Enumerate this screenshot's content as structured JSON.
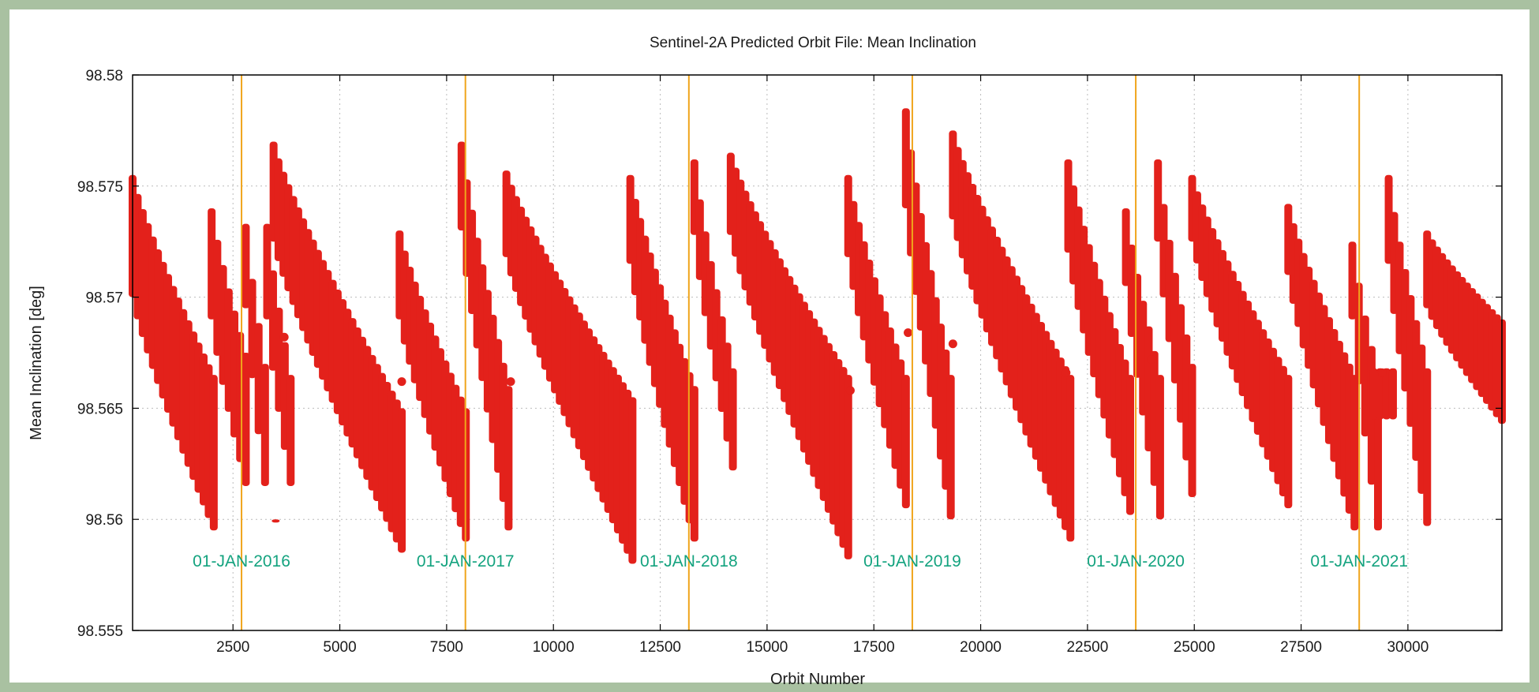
{
  "frame_color": "#a9c1a1",
  "chart_data": {
    "type": "scatter",
    "title": "Sentinel-2A Predicted Orbit File: Mean Inclination",
    "xlabel": "Orbit Number",
    "ylabel": "Mean Inclination [deg]",
    "xlim": [
      150,
      32200
    ],
    "ylim": [
      98.555,
      98.58
    ],
    "x_ticks": [
      2500,
      5000,
      7500,
      10000,
      12500,
      15000,
      17500,
      20000,
      22500,
      25000,
      27500,
      30000
    ],
    "y_ticks": [
      98.555,
      98.56,
      98.565,
      98.57,
      98.575,
      98.58
    ],
    "y_tick_labels": [
      "98.555",
      "98.56",
      "98.565",
      "98.57",
      "98.575",
      "98.58"
    ],
    "grid": true,
    "legend": "none",
    "series_color": "#e3211b",
    "marker_line_color": "#f0a51c",
    "annotation_color": "#14a37f",
    "year_markers": [
      {
        "x": 2700,
        "label": "01-JAN-2016"
      },
      {
        "x": 7940,
        "label": "01-JAN-2017"
      },
      {
        "x": 13170,
        "label": "01-JAN-2018"
      },
      {
        "x": 18400,
        "label": "01-JAN-2019"
      },
      {
        "x": 23630,
        "label": "01-JAN-2020"
      },
      {
        "x": 28860,
        "label": "01-JAN-2021"
      }
    ],
    "segments": [
      {
        "x0": 150,
        "x1": 2050,
        "top0": 98.5755,
        "top1": 98.5665,
        "bot0": 98.57,
        "bot1": 98.5595
      },
      {
        "x0": 2000,
        "x1": 2800,
        "top0": 98.574,
        "top1": 98.5675,
        "bot0": 98.569,
        "bot1": 98.5615
      },
      {
        "x0": 2800,
        "x1": 3250,
        "top0": 98.5733,
        "top1": 98.567,
        "bot0": 98.5695,
        "bot1": 98.5615
      },
      {
        "x0": 3300,
        "x1": 3850,
        "top0": 98.5733,
        "top1": 98.5665,
        "bot0": 98.569,
        "bot1": 98.5615
      },
      {
        "x0": 3500,
        "x1": 3650,
        "top0": 98.56,
        "top1": 98.56,
        "bot0": 98.56,
        "bot1": 98.56
      },
      {
        "x0": 3450,
        "x1": 6450,
        "top0": 98.577,
        "top1": 98.565,
        "bot0": 98.5725,
        "bot1": 98.5585
      },
      {
        "x0": 6400,
        "x1": 7950,
        "top0": 98.573,
        "top1": 98.565,
        "bot0": 98.569,
        "bot1": 98.559
      },
      {
        "x0": 7850,
        "x1": 8950,
        "top0": 98.577,
        "top1": 98.566,
        "bot0": 98.573,
        "bot1": 98.5595
      },
      {
        "x0": 8900,
        "x1": 11850,
        "top0": 98.5757,
        "top1": 98.5655,
        "bot0": 98.5718,
        "bot1": 98.558
      },
      {
        "x0": 11800,
        "x1": 13300,
        "top0": 98.5755,
        "top1": 98.566,
        "bot0": 98.5715,
        "bot1": 98.559
      },
      {
        "x0": 13300,
        "x1": 14200,
        "top0": 98.5762,
        "top1": 98.5668,
        "bot0": 98.5728,
        "bot1": 98.5622
      },
      {
        "x0": 14150,
        "x1": 16900,
        "top0": 98.5765,
        "top1": 98.5665,
        "bot0": 98.5728,
        "bot1": 98.5582
      },
      {
        "x0": 16900,
        "x1": 18250,
        "top0": 98.5755,
        "top1": 98.5665,
        "bot0": 98.5718,
        "bot1": 98.5605
      },
      {
        "x0": 18250,
        "x1": 19300,
        "top0": 98.5785,
        "top1": 98.5665,
        "bot0": 98.574,
        "bot1": 98.56
      },
      {
        "x0": 19350,
        "x1": 22100,
        "top0": 98.5775,
        "top1": 98.5665,
        "bot0": 98.5735,
        "bot1": 98.559
      },
      {
        "x0": 22050,
        "x1": 23500,
        "top0": 98.5762,
        "top1": 98.5665,
        "bot0": 98.572,
        "bot1": 98.5602
      },
      {
        "x0": 23400,
        "x1": 24200,
        "top0": 98.574,
        "top1": 98.5665,
        "bot0": 98.5705,
        "bot1": 98.56
      },
      {
        "x0": 24150,
        "x1": 24950,
        "top0": 98.5762,
        "top1": 98.567,
        "bot0": 98.5725,
        "bot1": 98.561
      },
      {
        "x0": 24950,
        "x1": 27200,
        "top0": 98.5755,
        "top1": 98.5665,
        "bot0": 98.5725,
        "bot1": 98.5605
      },
      {
        "x0": 27200,
        "x1": 28750,
        "top0": 98.5742,
        "top1": 98.5665,
        "bot0": 98.571,
        "bot1": 98.5595
      },
      {
        "x0": 28700,
        "x1": 29300,
        "top0": 98.5725,
        "top1": 98.5665,
        "bot0": 98.569,
        "bot1": 98.5595
      },
      {
        "x0": 29200,
        "x1": 29650,
        "top0": 98.5668,
        "top1": 98.5668,
        "bot0": 98.5645,
        "bot1": 98.5645
      },
      {
        "x0": 29550,
        "x1": 30450,
        "top0": 98.5755,
        "top1": 98.5668,
        "bot0": 98.5715,
        "bot1": 98.5597
      },
      {
        "x0": 30450,
        "x1": 32200,
        "top0": 98.573,
        "top1": 98.569,
        "bot0": 98.5695,
        "bot1": 98.5643
      }
    ],
    "outliers": [
      {
        "x": 3700,
        "y": 98.5682
      },
      {
        "x": 6450,
        "y": 98.5662
      },
      {
        "x": 9000,
        "y": 98.5662
      },
      {
        "x": 16950,
        "y": 98.5658
      },
      {
        "x": 18300,
        "y": 98.5684
      },
      {
        "x": 19350,
        "y": 98.5679
      },
      {
        "x": 22000,
        "y": 98.5666
      },
      {
        "x": 24000,
        "y": 98.5672
      },
      {
        "x": 29400,
        "y": 98.5666
      }
    ]
  }
}
